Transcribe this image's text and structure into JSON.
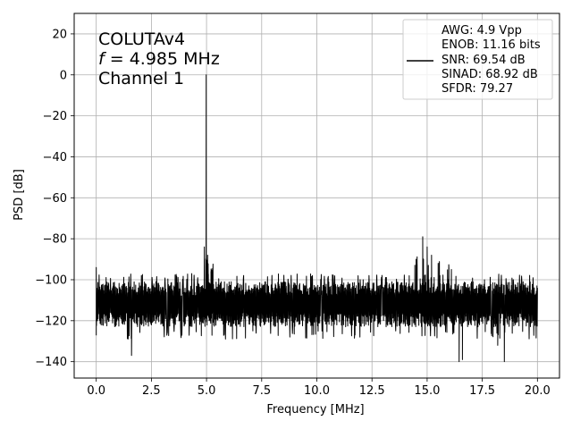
{
  "chart_data": {
    "type": "line",
    "title": "",
    "xlabel": "Frequency [MHz]",
    "ylabel": "PSD [dB]",
    "xlim": [
      -1.0,
      21.0
    ],
    "ylim": [
      -148,
      30
    ],
    "xticks": [
      0.0,
      2.5,
      5.0,
      7.5,
      10.0,
      12.5,
      15.0,
      17.5,
      20.0
    ],
    "xtick_labels": [
      "0.0",
      "2.5",
      "5.0",
      "7.5",
      "10.0",
      "12.5",
      "15.0",
      "17.5",
      "20.0"
    ],
    "yticks": [
      20,
      0,
      -20,
      -40,
      -60,
      -80,
      -100,
      -120,
      -140
    ],
    "ytick_labels": [
      "20",
      "0",
      "−20",
      "−40",
      "−60",
      "−80",
      "−100",
      "−120",
      "−140"
    ],
    "grid": true,
    "annotation": {
      "lines": [
        "COLUTAv4",
        "= 4.985 MHz",
        "Channel 1"
      ],
      "f_symbol": "f"
    },
    "legend": {
      "placement": "upper right",
      "lines": [
        "AWG: 4.9 Vpp",
        "ENOB: 11.16 bits",
        "SNR: 69.54 dB",
        "SINAD: 68.92 dB",
        "SFDR: 79.27"
      ]
    },
    "series": [
      {
        "color": "#000000",
        "noise_floor_db": -112,
        "noise_band_db": [
          -125,
          -100
        ],
        "points": [
          [
            0.0,
            -94
          ],
          [
            0.05,
            -120
          ],
          [
            0.15,
            -104
          ],
          [
            0.4,
            -117
          ],
          [
            1.05,
            -108
          ],
          [
            1.6,
            -137
          ],
          [
            2.6,
            -118
          ],
          [
            4.9,
            -84
          ],
          [
            4.985,
            0
          ],
          [
            5.05,
            -88
          ],
          [
            5.2,
            -96
          ],
          [
            7.1,
            -125
          ],
          [
            9.8,
            -98
          ],
          [
            10.5,
            -99
          ],
          [
            12.1,
            -100
          ],
          [
            13.4,
            -101
          ],
          [
            14.5,
            -90
          ],
          [
            14.8,
            -79
          ],
          [
            15.0,
            -84
          ],
          [
            15.2,
            -88
          ],
          [
            15.5,
            -92
          ],
          [
            16.1,
            -95
          ],
          [
            16.45,
            -140
          ],
          [
            16.6,
            -139
          ],
          [
            17.6,
            -100
          ],
          [
            18.2,
            -132
          ],
          [
            18.5,
            -140
          ],
          [
            18.9,
            -100
          ],
          [
            19.35,
            -101
          ],
          [
            19.8,
            -99
          ],
          [
            20.0,
            -104
          ]
        ]
      }
    ]
  }
}
